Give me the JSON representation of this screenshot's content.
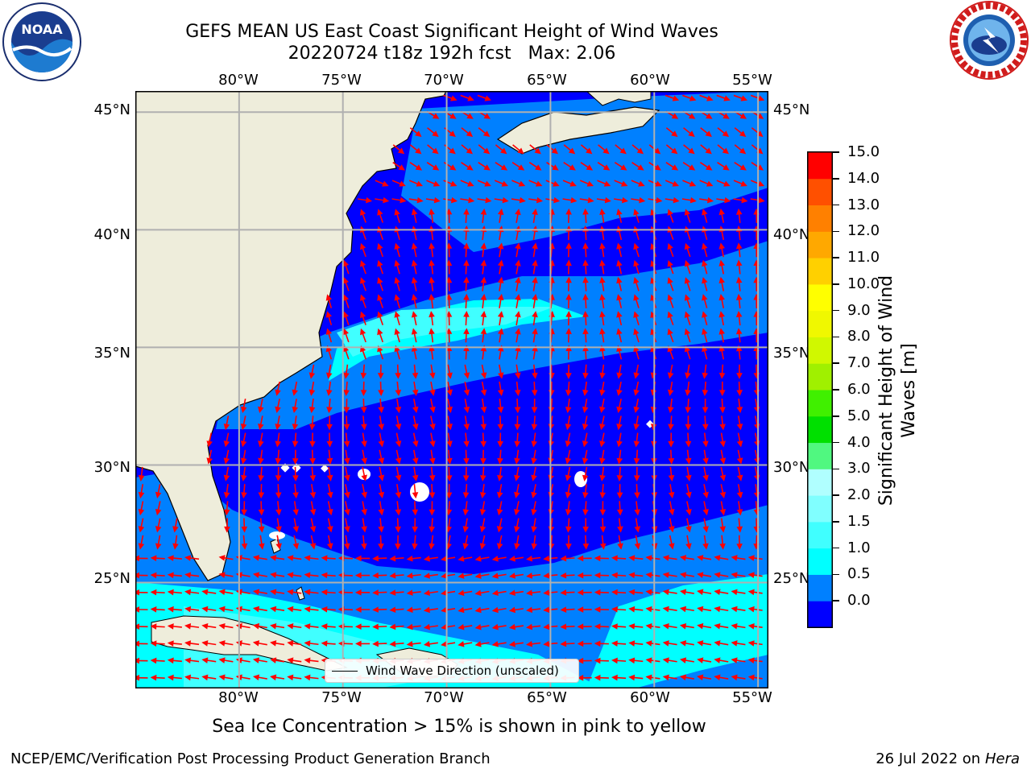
{
  "header": {
    "title_line1": "GEFS MEAN US East Coast Significant Height of Wind Waves",
    "title_line2": "20220724 t18z 192h fcst   Max: 2.06"
  },
  "logos": {
    "left": {
      "text": "NOAA",
      "ring_text": "NATIONAL OCEANIC AND ATMOSPHERIC ADMINISTRATION · U.S. DEPARTMENT OF COMMERCE"
    },
    "right": {
      "ring_text": "NATIONAL WEATHER SERVICE"
    }
  },
  "map": {
    "lon_labels": [
      "80°W",
      "75°W",
      "70°W",
      "65°W",
      "60°W",
      "55°W"
    ],
    "lat_labels": [
      "45°N",
      "40°N",
      "35°N",
      "30°N",
      "25°N"
    ],
    "lon_range": [
      -85,
      -54.5
    ],
    "lat_range": [
      20.5,
      45.9
    ],
    "legend_label": "Wind Wave Direction (unscaled)",
    "colors": {
      "land": "#eeeddb",
      "grid": "#b0b0b0",
      "arrow": "#ff0000"
    }
  },
  "colorbar": {
    "label": "Significant Height of Wind Waves [m]",
    "ticks": [
      "15.0",
      "14.0",
      "13.0",
      "12.0",
      "11.0",
      "10.0",
      "9.0",
      "8.0",
      "7.0",
      "6.0",
      "5.0",
      "4.0",
      "3.0",
      "2.0",
      "1.5",
      "1.0",
      "0.5",
      "0.0"
    ],
    "levels": [
      0.0,
      0.5,
      1.0,
      1.5,
      2.0,
      2.5,
      3.0,
      4.0,
      5.0,
      6.0,
      7.0,
      8.0,
      9.0,
      10.0,
      11.0,
      12.0,
      13.0,
      14.0,
      15.0
    ],
    "colors": [
      "#0000ff",
      "#0080ff",
      "#00ffff",
      "#40ffff",
      "#80ffff",
      "#b0ffff",
      "#50f880",
      "#00e000",
      "#40f000",
      "#a0f000",
      "#d0f800",
      "#f0f800",
      "#ffff00",
      "#ffd000",
      "#ffa800",
      "#ff8000",
      "#ff5000",
      "#ff0000"
    ]
  },
  "chart_data": {
    "type": "heatmap",
    "title": "GEFS MEAN US East Coast Significant Height of Wind Waves",
    "subtitle": "20220724 t18z 192h fcst   Max: 2.06",
    "max_value": 2.06,
    "units": "m"
  },
  "footer": {
    "note": "Sea Ice Concentration > 15% is shown in pink to yellow",
    "left": "NCEP/EMC/Verification Post Processing Product Generation Branch",
    "right_date": "26 Jul 2022 on ",
    "right_host": "Hera"
  }
}
